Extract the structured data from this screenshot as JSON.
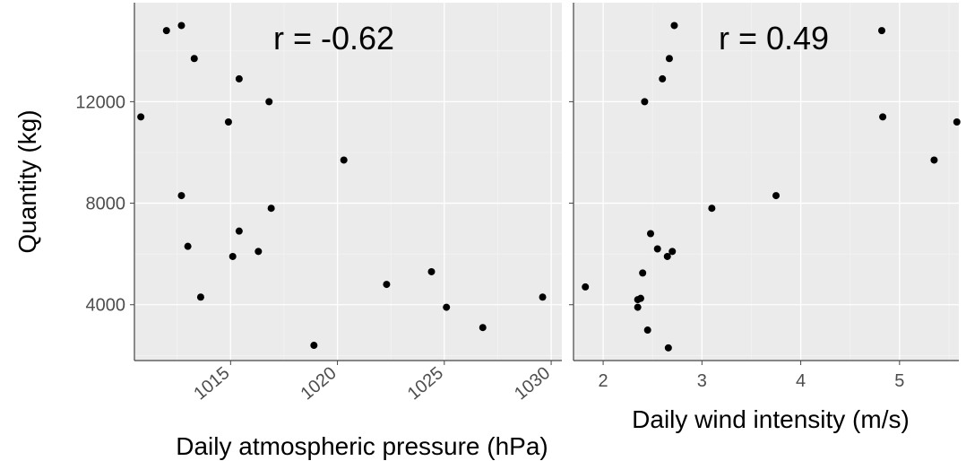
{
  "chart_data": [
    {
      "type": "scatter",
      "xlabel": "Daily atmospheric pressure (hPa)",
      "ylabel": "Quantity (kg)",
      "annotation": "r = -0.62",
      "xlim": [
        1010.5,
        1030.5
      ],
      "ylim": [
        1800,
        15900
      ],
      "xticks": [
        1015,
        1020,
        1025,
        1030
      ],
      "yticks": [
        4000,
        8000,
        12000
      ],
      "x_tick_rotation": -40,
      "x": [
        1010.8,
        1012.0,
        1012.7,
        1013.3,
        1012.7,
        1013.0,
        1013.6,
        1014.9,
        1015.4,
        1015.1,
        1015.4,
        1016.8,
        1016.9,
        1016.3,
        1018.9,
        1020.3,
        1022.3,
        1024.4,
        1025.1,
        1026.8,
        1029.6
      ],
      "y": [
        11400,
        14800,
        15000,
        13700,
        8300,
        6300,
        4300,
        11200,
        12900,
        5900,
        6900,
        12000,
        7800,
        6100,
        2400,
        9700,
        4800,
        5300,
        3900,
        3100,
        4300
      ],
      "grid": true
    },
    {
      "type": "scatter",
      "xlabel": "Daily wind intensity (m/s)",
      "ylabel": "",
      "annotation": "r = 0.49",
      "xlim": [
        1.7,
        5.6
      ],
      "ylim": [
        1800,
        15900
      ],
      "xticks": [
        2,
        3,
        4,
        5
      ],
      "yticks": [
        4000,
        8000,
        12000
      ],
      "x": [
        1.82,
        2.35,
        2.35,
        2.38,
        2.4,
        2.42,
        2.45,
        2.48,
        2.55,
        2.6,
        2.65,
        2.67,
        2.7,
        2.72,
        2.66,
        3.1,
        3.75,
        4.82,
        4.83,
        5.35,
        5.58
      ],
      "y": [
        4700,
        3900,
        4200,
        4250,
        5250,
        12000,
        3000,
        6800,
        6200,
        12900,
        5900,
        13700,
        6100,
        15000,
        2300,
        7800,
        8300,
        14800,
        11400,
        9700,
        11200
      ],
      "grid": true
    }
  ]
}
